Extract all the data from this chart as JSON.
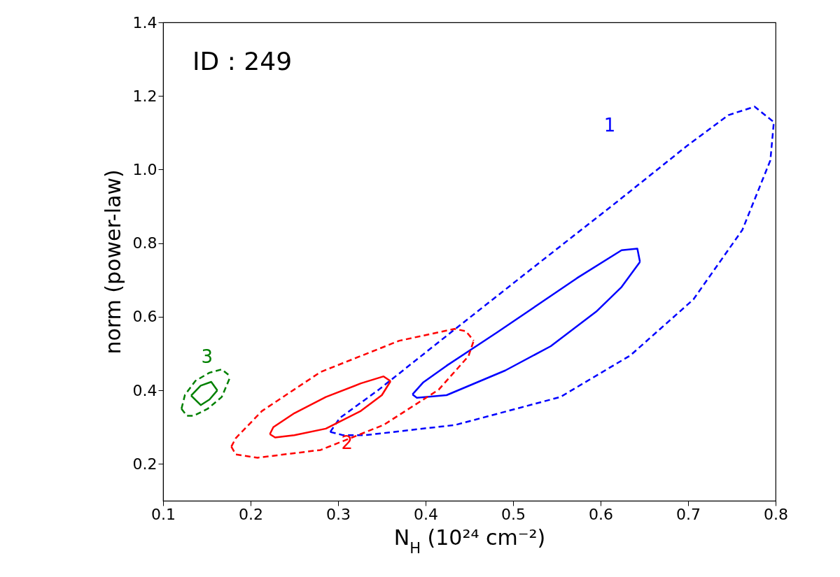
{
  "chart_data": {
    "type": "line",
    "xlabel": "N$_{H}$ (10²⁴ cm⁻²)",
    "ylabel": "norm (power-law)",
    "xlim": [
      0.1,
      0.8
    ],
    "ylim": [
      0.1,
      1.4
    ],
    "xticks": [
      0.1,
      0.2,
      0.3,
      0.4,
      0.5,
      0.6,
      0.7,
      0.8
    ],
    "yticks": [
      0.2,
      0.4,
      0.6,
      0.8,
      {
        "value": 1.0,
        "label": "1.0"
      },
      1.2,
      1.4
    ],
    "grid": false,
    "legend": false,
    "marker": "none",
    "annotations": [
      "ID : 249"
    ],
    "series": [
      {
        "name": "1",
        "color": "#0000ff",
        "line_style": "dashed",
        "x": [
          0.291,
          0.302,
          0.346,
          0.426,
          0.522,
          0.618,
          0.698,
          0.746,
          0.776,
          0.798
        ],
        "values": [
          0.287,
          0.325,
          0.401,
          0.552,
          0.732,
          0.911,
          1.063,
          1.148,
          1.171,
          1.129
        ]
      },
      {
        "color": "#0000ff",
        "line_style": "dashed",
        "x": [
          0.291,
          0.306,
          0.33,
          0.434,
          0.554,
          0.634,
          0.706,
          0.762,
          0.794,
          0.798
        ],
        "values": [
          0.287,
          0.278,
          0.278,
          0.306,
          0.382,
          0.495,
          0.647,
          0.836,
          1.025,
          1.129
        ]
      },
      {
        "color": "#0000ff",
        "line_style": "solid",
        "x": [
          0.385,
          0.397,
          0.424,
          0.482,
          0.573,
          0.624,
          0.642,
          0.645
        ],
        "values": [
          0.389,
          0.421,
          0.467,
          0.558,
          0.705,
          0.781,
          0.785,
          0.749
        ]
      },
      {
        "color": "#0000ff",
        "line_style": "solid",
        "x": [
          0.385,
          0.39,
          0.424,
          0.491,
          0.543,
          0.595,
          0.624,
          0.645
        ],
        "values": [
          0.389,
          0.38,
          0.387,
          0.454,
          0.52,
          0.614,
          0.681,
          0.749
        ]
      },
      {
        "name": "2",
        "color": "#ff0000",
        "line_style": "dashed",
        "x": [
          0.178,
          0.183,
          0.213,
          0.28,
          0.37,
          0.433,
          0.446,
          0.455
        ],
        "values": [
          0.247,
          0.27,
          0.344,
          0.45,
          0.535,
          0.567,
          0.561,
          0.535
        ]
      },
      {
        "color": "#ff0000",
        "line_style": "dashed",
        "x": [
          0.178,
          0.183,
          0.208,
          0.28,
          0.352,
          0.415,
          0.449,
          0.455
        ],
        "values": [
          0.247,
          0.226,
          0.217,
          0.238,
          0.306,
          0.402,
          0.493,
          0.535
        ]
      },
      {
        "color": "#ff0000",
        "line_style": "solid",
        "x": [
          0.222,
          0.226,
          0.25,
          0.286,
          0.326,
          0.352,
          0.36
        ],
        "values": [
          0.281,
          0.3,
          0.338,
          0.382,
          0.419,
          0.438,
          0.425
        ]
      },
      {
        "color": "#ff0000",
        "line_style": "solid",
        "x": [
          0.222,
          0.228,
          0.25,
          0.286,
          0.326,
          0.35,
          0.36
        ],
        "values": [
          0.281,
          0.272,
          0.278,
          0.296,
          0.344,
          0.387,
          0.425
        ]
      },
      {
        "name": "3",
        "color": "#008000",
        "line_style": "dashed",
        "x": [
          0.121,
          0.125,
          0.137,
          0.153,
          0.167,
          0.177
        ],
        "values": [
          0.35,
          0.388,
          0.426,
          0.448,
          0.457,
          0.438
        ]
      },
      {
        "color": "#008000",
        "line_style": "dashed",
        "x": [
          0.121,
          0.127,
          0.135,
          0.151,
          0.167,
          0.177
        ],
        "values": [
          0.35,
          0.331,
          0.331,
          0.35,
          0.382,
          0.438
        ]
      },
      {
        "color": "#008000",
        "line_style": "solid",
        "x": [
          0.132,
          0.143,
          0.155,
          0.162
        ],
        "values": [
          0.386,
          0.413,
          0.423,
          0.4
        ]
      },
      {
        "color": "#008000",
        "line_style": "solid",
        "x": [
          0.132,
          0.143,
          0.153,
          0.162
        ],
        "values": [
          0.386,
          0.36,
          0.375,
          0.4
        ]
      }
    ]
  }
}
